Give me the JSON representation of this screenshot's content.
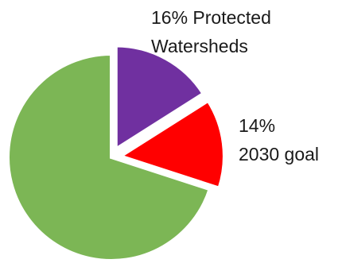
{
  "chart_data": {
    "type": "pie",
    "title": "",
    "categories": [
      "Protected Watersheds",
      "2030 goal",
      ""
    ],
    "values": [
      16,
      14,
      70
    ],
    "colors": [
      "#7030a0",
      "#ff0000",
      "#7cb655"
    ],
    "exploded": [
      true,
      true,
      false
    ],
    "labels": [
      {
        "line1": "16% Protected",
        "line2": "Watersheds"
      },
      {
        "line1": "14%",
        "line2": "2030 goal"
      }
    ]
  }
}
